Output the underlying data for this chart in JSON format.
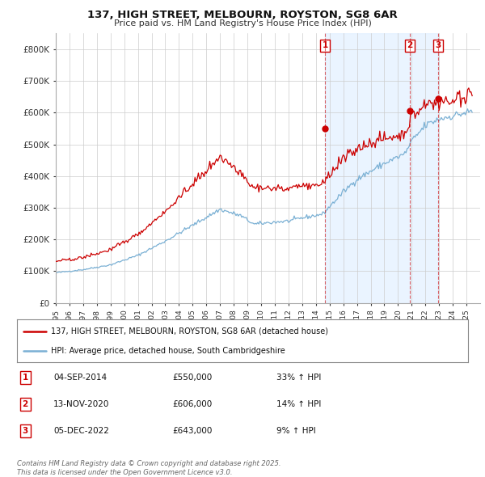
{
  "title_line1": "137, HIGH STREET, MELBOURN, ROYSTON, SG8 6AR",
  "title_line2": "Price paid vs. HM Land Registry's House Price Index (HPI)",
  "ylim": [
    0,
    850000
  ],
  "yticks": [
    0,
    100000,
    200000,
    300000,
    400000,
    500000,
    600000,
    700000,
    800000
  ],
  "ytick_labels": [
    "£0",
    "£100K",
    "£200K",
    "£300K",
    "£400K",
    "£500K",
    "£600K",
    "£700K",
    "£800K"
  ],
  "xlim_start": 1995.0,
  "xlim_end": 2026.0,
  "red_color": "#cc0000",
  "blue_color": "#7ab0d4",
  "shade_color": "#ddeeff",
  "annotation_color": "#cc0000",
  "grid_color": "#cccccc",
  "bg_color": "#ffffff",
  "sale_markers": [
    {
      "year": 2014.67,
      "price": 550000,
      "label": "1"
    },
    {
      "year": 2020.87,
      "price": 606000,
      "label": "2"
    },
    {
      "year": 2022.92,
      "price": 643000,
      "label": "3"
    }
  ],
  "legend_entry1": "137, HIGH STREET, MELBOURN, ROYSTON, SG8 6AR (detached house)",
  "legend_entry2": "HPI: Average price, detached house, South Cambridgeshire",
  "table_rows": [
    {
      "num": "1",
      "date": "04-SEP-2014",
      "price": "£550,000",
      "change": "33% ↑ HPI"
    },
    {
      "num": "2",
      "date": "13-NOV-2020",
      "price": "£606,000",
      "change": "14% ↑ HPI"
    },
    {
      "num": "3",
      "date": "05-DEC-2022",
      "price": "£643,000",
      "change": "9% ↑ HPI"
    }
  ],
  "footer": "Contains HM Land Registry data © Crown copyright and database right 2025.\nThis data is licensed under the Open Government Licence v3.0."
}
